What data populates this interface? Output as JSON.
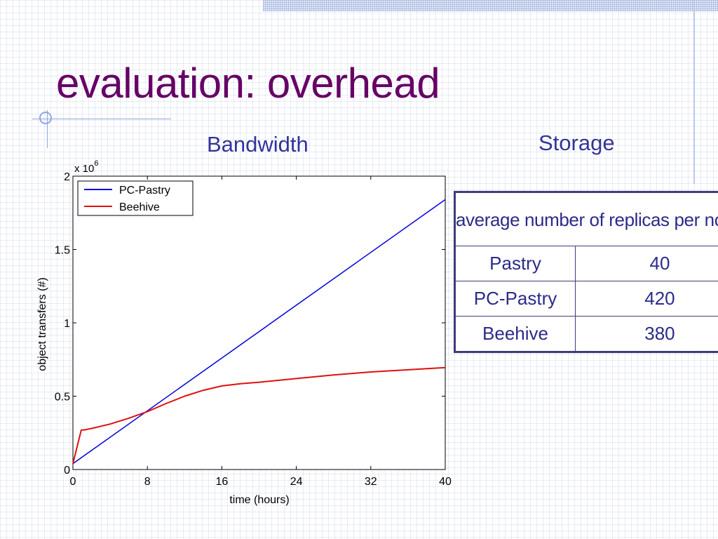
{
  "slide": {
    "title": "evaluation: overhead",
    "bandwidth_label": "Bandwidth",
    "storage_label": "Storage"
  },
  "colors": {
    "title": "#660066",
    "labels": "#33339a",
    "series_pc_pastry": "#0000dd",
    "series_beehive": "#e01010"
  },
  "chart_data": {
    "type": "line",
    "x_unit": "hours",
    "xlabel": "time (hours)",
    "ylabel": "object transfers (#)",
    "y_multiplier_label": "x 10",
    "y_multiplier_exponent": "6",
    "xlim": [
      0,
      40
    ],
    "ylim": [
      0,
      2
    ],
    "xticks": [
      "0",
      "8",
      "16",
      "24",
      "32",
      "40"
    ],
    "yticks": [
      "0",
      "0.5",
      "1",
      "1.5",
      "2"
    ],
    "grid": false,
    "legend_position": "top-left",
    "series": [
      {
        "name": "PC-Pastry",
        "color": "#0000dd",
        "x": [
          0,
          40
        ],
        "y": [
          0.04,
          1.84
        ]
      },
      {
        "name": "Beehive",
        "color": "#e01010",
        "x": [
          0,
          0.9,
          1.2,
          2,
          4,
          6,
          8,
          10,
          12,
          14,
          16,
          18,
          20,
          24,
          28,
          32,
          36,
          40
        ],
        "y": [
          0.04,
          0.27,
          0.27,
          0.28,
          0.31,
          0.35,
          0.395,
          0.45,
          0.5,
          0.54,
          0.57,
          0.585,
          0.595,
          0.62,
          0.645,
          0.665,
          0.68,
          0.695
        ]
      }
    ]
  },
  "storage_table": {
    "header": "average number of replicas per node",
    "rows": [
      {
        "name": "Pastry",
        "value": "40"
      },
      {
        "name": "PC-Pastry",
        "value": "420"
      },
      {
        "name": "Beehive",
        "value": "380"
      }
    ]
  }
}
